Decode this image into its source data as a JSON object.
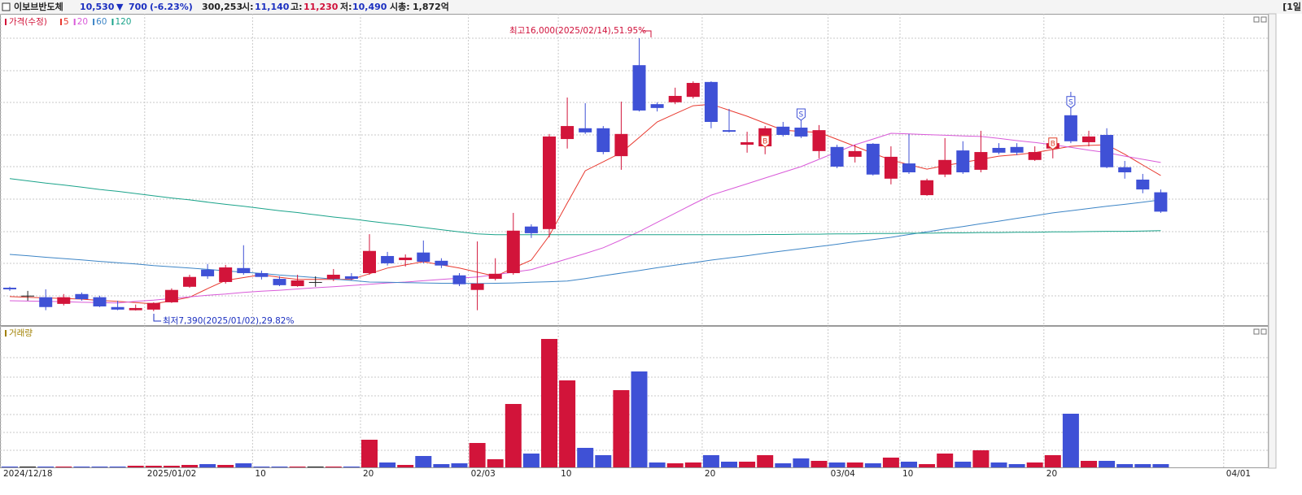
{
  "header": {
    "name": "이보브반도체",
    "price": "10,530",
    "change_arrow": "▼",
    "change": "700",
    "change_pct": "(-6.23%)",
    "volume": "300,253",
    "open_label": "시:",
    "open": "11,140",
    "high_label": "고:",
    "high": "11,230",
    "low_label": "저:",
    "low": "10,490",
    "cap_label": "시총:",
    "cap": "1,872억",
    "period": "[1일"
  },
  "chart_data": {
    "type": "candlestick",
    "price_name": "가격(수정)",
    "volume_name": "거래량",
    "annotations": {
      "high": "최고16,000(2025/02/14),51.95%",
      "low": "최저7,390(2025/01/02),29.82%"
    },
    "categories": [
      "2024/12/18",
      null,
      null,
      null,
      null,
      null,
      null,
      null,
      "2025/01/02",
      null,
      null,
      null,
      null,
      null,
      "10",
      null,
      null,
      null,
      null,
      null,
      "20",
      null,
      null,
      null,
      null,
      null,
      "02/03",
      null,
      null,
      null,
      null,
      "10",
      null,
      null,
      null,
      null,
      null,
      null,
      null,
      "20",
      null,
      null,
      null,
      null,
      null,
      null,
      "03/04",
      null,
      null,
      null,
      "10",
      null,
      null,
      null,
      null,
      null,
      null,
      null,
      "20",
      null,
      null,
      null,
      null,
      null,
      null,
      null,
      null,
      null,
      "04/01"
    ],
    "open": [
      8130,
      7880,
      7830,
      7620,
      7930,
      7830,
      7520,
      7420,
      7440,
      7670,
      8160,
      8700,
      8310,
      8750,
      8590,
      8410,
      8180,
      8310,
      8410,
      8490,
      8590,
      9130,
      9000,
      9240,
      8980,
      8520,
      8060,
      8410,
      8590,
      10060,
      9980,
      12820,
      13160,
      13160,
      12280,
      15150,
      13920,
      13980,
      14150,
      14620,
      13100,
      12640,
      12590,
      13210,
      13180,
      12440,
      12570,
      12260,
      12670,
      11570,
      12050,
      11050,
      11700,
      12460,
      11850,
      12540,
      12570,
      12160,
      12520,
      13570,
      12720,
      12950,
      11930,
      11540,
      11140,
      null,
      null,
      null,
      null
    ],
    "high": [
      8160,
      8030,
      8080,
      7930,
      7980,
      7880,
      7720,
      7600,
      7670,
      8110,
      8540,
      8880,
      8850,
      9470,
      8670,
      8490,
      8540,
      8490,
      8720,
      8590,
      9820,
      9260,
      9180,
      9620,
      9060,
      8590,
      9590,
      9060,
      10490,
      10130,
      12980,
      14130,
      13950,
      13230,
      14000,
      16000,
      13980,
      14440,
      14640,
      14640,
      13770,
      13050,
      13230,
      13360,
      13490,
      13260,
      12640,
      12640,
      12690,
      12590,
      12980,
      11570,
      12850,
      12750,
      13080,
      12690,
      12690,
      12590,
      12690,
      14310,
      13080,
      13160,
      12130,
      11720,
      11230,
      null,
      null,
      null,
      null
    ],
    "low": [
      8030,
      7720,
      7420,
      7570,
      7720,
      7520,
      7420,
      7410,
      7390,
      7650,
      8130,
      8410,
      8260,
      8540,
      8390,
      8180,
      8160,
      8160,
      8340,
      8360,
      8540,
      8830,
      8800,
      8900,
      8750,
      8180,
      7420,
      8360,
      8540,
      9700,
      9720,
      12520,
      12980,
      12340,
      11850,
      13690,
      13690,
      13920,
      14100,
      13160,
      13030,
      12390,
      12340,
      12900,
      12850,
      12210,
      11900,
      12080,
      11670,
      11390,
      11720,
      11030,
      11620,
      11720,
      11770,
      12340,
      12310,
      12130,
      12210,
      12690,
      12590,
      11900,
      11570,
      11110,
      10490,
      null,
      null,
      null,
      null
    ],
    "close": [
      8080,
      7880,
      7520,
      7830,
      7770,
      7540,
      7440,
      7490,
      7650,
      8060,
      8470,
      8490,
      8770,
      8590,
      8470,
      8210,
      8360,
      8310,
      8540,
      8410,
      9290,
      8900,
      9080,
      8950,
      8830,
      8240,
      8260,
      8570,
      9930,
      9850,
      12900,
      13230,
      13030,
      12410,
      12980,
      13720,
      13800,
      14180,
      14590,
      13360,
      13050,
      12720,
      13160,
      12950,
      12900,
      13100,
      11950,
      12440,
      11700,
      12260,
      11770,
      11520,
      12160,
      11770,
      12410,
      12390,
      12390,
      12410,
      12690,
      12750,
      12900,
      11930,
      11770,
      11230,
      10530,
      null,
      null,
      null,
      null
    ],
    "volume": [
      75000,
      75000,
      75000,
      75000,
      75000,
      75000,
      75000,
      150000,
      150000,
      150000,
      225000,
      300000,
      225000,
      375000,
      75000,
      75000,
      75000,
      75000,
      75000,
      75000,
      2550000,
      450000,
      225000,
      1050000,
      300000,
      375000,
      2250000,
      750000,
      5850000,
      1275000,
      11850000,
      8025000,
      1800000,
      1125000,
      7125000,
      8850000,
      450000,
      375000,
      450000,
      1125000,
      525000,
      525000,
      1125000,
      375000,
      825000,
      600000,
      450000,
      450000,
      375000,
      900000,
      525000,
      300000,
      1275000,
      525000,
      1575000,
      450000,
      300000,
      450000,
      1125000,
      4950000,
      600000,
      600000,
      300000,
      300000,
      300253,
      null,
      null,
      null,
      null
    ],
    "up_color": "#d2143a",
    "down_color": "#3f51d6",
    "flat_color": "#222222",
    "ylim": [
      6950,
      16770
    ],
    "volume_ylim": [
      0,
      12450000
    ],
    "series": [
      {
        "name": "5",
        "color": "#e8392f",
        "values": [
          7850,
          7830,
          7810,
          7790,
          7770,
          7730,
          7700,
          7660,
          7620,
          7720,
          7830,
          8100,
          8360,
          8450,
          8540,
          8460,
          8390,
          8390,
          8390,
          8390,
          8570,
          8750,
          8850,
          8950,
          8850,
          8750,
          8620,
          8490,
          8750,
          9000,
          9770,
          10800,
          11820,
          12100,
          12390,
          12870,
          13360,
          13620,
          13870,
          13920,
          13730,
          13540,
          13320,
          13100,
          13060,
          13030,
          12810,
          12590,
          12370,
          12160,
          12010,
          11870,
          11980,
          12080,
          12180,
          12280,
          12330,
          12390,
          12490,
          12590,
          12620,
          12640,
          12340,
          12000,
          11670,
          null,
          null,
          null,
          null
        ]
      },
      {
        "name": "20",
        "color": "#d95ad9",
        "values": [
          7720,
          7710,
          7700,
          7690,
          7670,
          7660,
          7650,
          7700,
          7740,
          7790,
          7840,
          7890,
          7930,
          7980,
          8020,
          8050,
          8090,
          8130,
          8160,
          8200,
          8240,
          8280,
          8310,
          8350,
          8390,
          8430,
          8470,
          8540,
          8620,
          8700,
          8870,
          9040,
          9210,
          9390,
          9640,
          9900,
          10190,
          10480,
          10770,
          11050,
          11230,
          11410,
          11590,
          11770,
          11950,
          12180,
          12410,
          12640,
          12820,
          13000,
          12980,
          12960,
          12940,
          12920,
          12900,
          12840,
          12770,
          12710,
          12640,
          12560,
          12470,
          12390,
          12280,
          12180,
          12080,
          null,
          null,
          null,
          null
        ]
      },
      {
        "name": "60",
        "color": "#3d85c6",
        "values": [
          9180,
          9140,
          9090,
          9050,
          9010,
          8960,
          8920,
          8880,
          8830,
          8790,
          8750,
          8710,
          8660,
          8620,
          8580,
          8530,
          8490,
          8450,
          8400,
          8360,
          8310,
          8300,
          8290,
          8280,
          8270,
          8270,
          8260,
          8270,
          8280,
          8300,
          8320,
          8340,
          8420,
          8510,
          8590,
          8670,
          8760,
          8840,
          8920,
          9000,
          9070,
          9140,
          9220,
          9290,
          9360,
          9430,
          9500,
          9580,
          9650,
          9720,
          9810,
          9890,
          9980,
          10060,
          10150,
          10230,
          10320,
          10400,
          10490,
          10560,
          10630,
          10700,
          10760,
          10830,
          10900,
          null,
          null,
          null,
          null
        ]
      },
      {
        "name": "120",
        "color": "#1aa38a",
        "values": [
          11570,
          11500,
          11430,
          11370,
          11300,
          11230,
          11170,
          11100,
          11030,
          10960,
          10900,
          10830,
          10760,
          10700,
          10630,
          10560,
          10500,
          10430,
          10360,
          10300,
          10230,
          10160,
          10100,
          10030,
          9960,
          9890,
          9830,
          9800,
          9800,
          9800,
          9800,
          9800,
          9800,
          9800,
          9800,
          9800,
          9800,
          9800,
          9800,
          9800,
          9800,
          9800,
          9810,
          9810,
          9820,
          9820,
          9830,
          9830,
          9840,
          9840,
          9850,
          9850,
          9860,
          9860,
          9870,
          9870,
          9880,
          9880,
          9890,
          9890,
          9900,
          9910,
          9910,
          9920,
          9930,
          null,
          null,
          null,
          null
        ]
      }
    ],
    "signals": [
      {
        "index": 42,
        "label": "B"
      },
      {
        "index": 44,
        "label": "S"
      },
      {
        "index": 58,
        "label": "B"
      },
      {
        "index": 59,
        "label": "S"
      }
    ]
  }
}
